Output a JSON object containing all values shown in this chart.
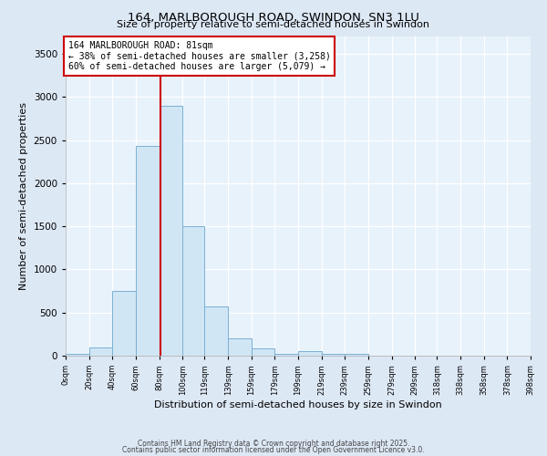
{
  "title1": "164, MARLBOROUGH ROAD, SWINDON, SN3 1LU",
  "title2": "Size of property relative to semi-detached houses in Swindon",
  "xlabel": "Distribution of semi-detached houses by size in Swindon",
  "ylabel": "Number of semi-detached properties",
  "bar_edges": [
    0,
    20,
    40,
    60,
    80,
    100,
    119,
    139,
    159,
    179,
    199,
    219,
    239,
    259,
    279,
    299,
    318,
    338,
    358,
    378,
    398
  ],
  "bar_heights": [
    20,
    100,
    750,
    2430,
    2900,
    1500,
    570,
    200,
    80,
    25,
    55,
    25,
    25,
    0,
    0,
    0,
    0,
    0,
    0,
    0
  ],
  "bar_color": "#d0e6f5",
  "bar_edge_color": "#7ab0d4",
  "property_size": 81,
  "red_line_color": "#cc0000",
  "annotation_text": "164 MARLBOROUGH ROAD: 81sqm\n← 38% of semi-detached houses are smaller (3,258)\n60% of semi-detached houses are larger (5,079) →",
  "annotation_box_color": "#ffffff",
  "annotation_box_edge": "#cc0000",
  "ylim": [
    0,
    3700
  ],
  "yticks": [
    0,
    500,
    1000,
    1500,
    2000,
    2500,
    3000,
    3500
  ],
  "bg_color": "#dde8f5",
  "plot_bg_color": "#e8f2fb",
  "grid_color": "#ffffff",
  "footer1": "Contains HM Land Registry data © Crown copyright and database right 2025.",
  "footer2": "Contains public sector information licensed under the Open Government Licence v3.0."
}
